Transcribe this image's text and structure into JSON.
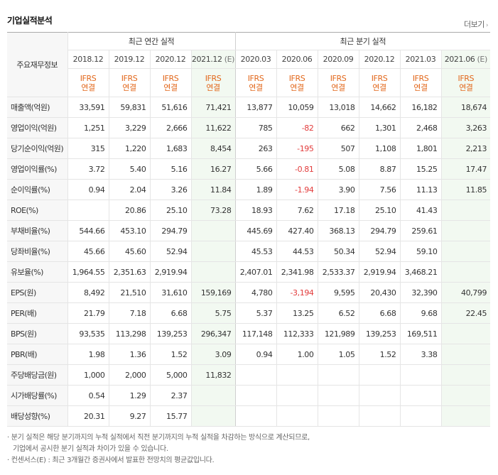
{
  "title": "기업실적분석",
  "more_label": "더보기",
  "header": {
    "corner_label": "주요재무정보",
    "annual_group": "최근 연간 실적",
    "quarter_group": "최근 분기 실적",
    "annual_periods": [
      "2018.12",
      "2019.12",
      "2020.12",
      "2021.12"
    ],
    "annual_est_flag": "(E)",
    "quarter_periods": [
      "2020.03",
      "2020.06",
      "2020.09",
      "2020.12",
      "2021.03",
      "2021.06"
    ],
    "quarter_est_flag": "(E)",
    "ifrs_line1": "IFRS",
    "ifrs_line2": "연결"
  },
  "rows": [
    {
      "label": "매출액(억원)",
      "annual": [
        "33,591",
        "59,831",
        "51,616",
        "71,421"
      ],
      "quarter": [
        "13,877",
        "10,059",
        "13,018",
        "14,662",
        "16,182",
        "18,674"
      ]
    },
    {
      "label": "영업이익(억원)",
      "annual": [
        "1,251",
        "3,229",
        "2,666",
        "11,622"
      ],
      "quarter": [
        "785",
        "-82",
        "662",
        "1,301",
        "2,468",
        "3,263"
      ]
    },
    {
      "label": "당기순이익(억원)",
      "annual": [
        "315",
        "1,220",
        "1,683",
        "8,454"
      ],
      "quarter": [
        "263",
        "-195",
        "507",
        "1,108",
        "1,801",
        "2,213"
      ]
    },
    {
      "label": "영업이익률(%)",
      "annual": [
        "3.72",
        "5.40",
        "5.16",
        "16.27"
      ],
      "quarter": [
        "5.66",
        "-0.81",
        "5.08",
        "8.87",
        "15.25",
        "17.47"
      ]
    },
    {
      "label": "순이익률(%)",
      "annual": [
        "0.94",
        "2.04",
        "3.26",
        "11.84"
      ],
      "quarter": [
        "1.89",
        "-1.94",
        "3.90",
        "7.56",
        "11.13",
        "11.85"
      ]
    },
    {
      "label": "ROE(%)",
      "annual": [
        "",
        "20.86",
        "25.10",
        "73.28"
      ],
      "quarter": [
        "18.93",
        "7.62",
        "17.18",
        "25.10",
        "41.43",
        ""
      ]
    },
    {
      "label": "부채비율(%)",
      "annual": [
        "544.66",
        "453.10",
        "294.79",
        ""
      ],
      "quarter": [
        "445.69",
        "427.40",
        "368.13",
        "294.79",
        "259.61",
        ""
      ]
    },
    {
      "label": "당좌비율(%)",
      "annual": [
        "45.66",
        "45.60",
        "52.94",
        ""
      ],
      "quarter": [
        "45.53",
        "44.53",
        "50.34",
        "52.94",
        "59.10",
        ""
      ]
    },
    {
      "label": "유보율(%)",
      "annual": [
        "1,964.55",
        "2,351.63",
        "2,919.94",
        ""
      ],
      "quarter": [
        "2,407.01",
        "2,341.98",
        "2,533.37",
        "2,919.94",
        "3,468.21",
        ""
      ]
    },
    {
      "label": "EPS(원)",
      "annual": [
        "8,492",
        "21,510",
        "31,610",
        "159,169"
      ],
      "quarter": [
        "4,780",
        "-3,194",
        "9,595",
        "20,430",
        "32,390",
        "40,799"
      ]
    },
    {
      "label": "PER(배)",
      "annual": [
        "21.79",
        "7.18",
        "6.68",
        "5.75"
      ],
      "quarter": [
        "5.37",
        "13.25",
        "6.52",
        "6.68",
        "9.68",
        "22.45"
      ]
    },
    {
      "label": "BPS(원)",
      "annual": [
        "93,535",
        "113,298",
        "139,253",
        "296,347"
      ],
      "quarter": [
        "117,148",
        "112,333",
        "121,989",
        "139,253",
        "169,511",
        ""
      ]
    },
    {
      "label": "PBR(배)",
      "annual": [
        "1.98",
        "1.36",
        "1.52",
        "3.09"
      ],
      "quarter": [
        "0.94",
        "1.00",
        "1.05",
        "1.52",
        "3.38",
        ""
      ]
    },
    {
      "label": "주당배당금(원)",
      "annual": [
        "1,000",
        "2,000",
        "5,000",
        "11,832"
      ],
      "quarter": [
        "",
        "",
        "",
        "",
        "",
        ""
      ]
    },
    {
      "label": "시가배당률(%)",
      "annual": [
        "0.54",
        "1.29",
        "2.37",
        ""
      ],
      "quarter": [
        "",
        "",
        "",
        "",
        "",
        ""
      ]
    },
    {
      "label": "배당성향(%)",
      "annual": [
        "20.31",
        "9.27",
        "15.77",
        ""
      ],
      "quarter": [
        "",
        "",
        "",
        "",
        "",
        ""
      ]
    }
  ],
  "notes": [
    "· 분기 실적은 해당 분기까지의 누적 실적에서 직전 분기까지의 누적 실적을 차감하는 방식으로 계산되므로,",
    "기업에서 공시한 분기 실적과 차이가 있을 수 있습니다.",
    "· 컨센서스(E) : 최근 3개월간 증권사에서 발표한 전망치의 평균값입니다."
  ],
  "colors": {
    "ifrs": "#e2671b",
    "negative": "#e23b3b",
    "estimate_bg": "#f2f9f1",
    "label_bg": "#f7f7f7"
  }
}
